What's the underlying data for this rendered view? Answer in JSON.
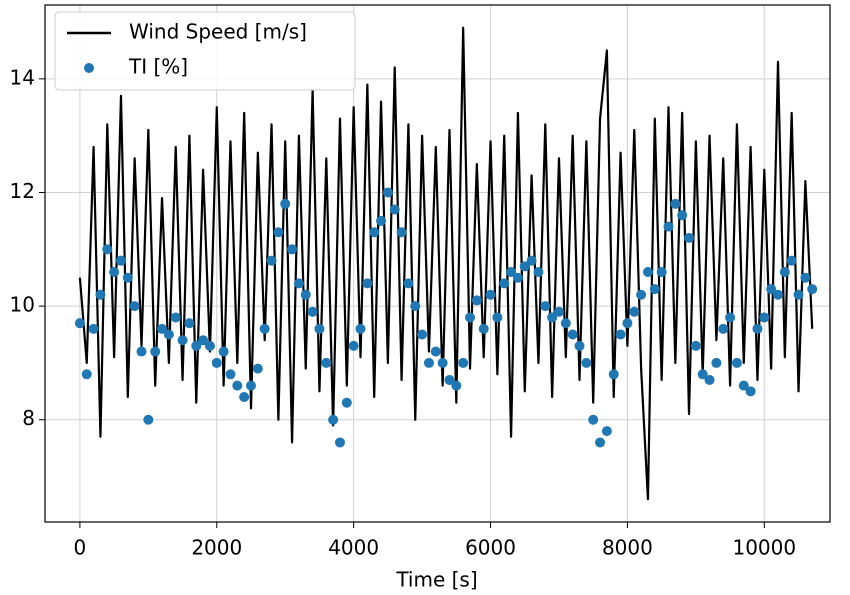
{
  "chart_data": {
    "type": "line",
    "xlabel": "Time [s]",
    "x": [
      0,
      100,
      200,
      300,
      400,
      500,
      600,
      700,
      800,
      900,
      1000,
      1100,
      1200,
      1300,
      1400,
      1500,
      1600,
      1700,
      1800,
      1900,
      2000,
      2100,
      2200,
      2300,
      2400,
      2500,
      2600,
      2700,
      2800,
      2900,
      3000,
      3100,
      3200,
      3300,
      3400,
      3500,
      3600,
      3700,
      3800,
      3900,
      4000,
      4100,
      4200,
      4300,
      4400,
      4500,
      4600,
      4700,
      4800,
      4900,
      5000,
      5100,
      5200,
      5300,
      5400,
      5500,
      5600,
      5700,
      5800,
      5900,
      6000,
      6100,
      6200,
      6300,
      6400,
      6500,
      6600,
      6700,
      6800,
      6900,
      7000,
      7100,
      7200,
      7300,
      7400,
      7500,
      7600,
      7700,
      7800,
      7900,
      8000,
      8100,
      8200,
      8300,
      8400,
      8500,
      8600,
      8700,
      8800,
      8900,
      9000,
      9100,
      9200,
      9300,
      9400,
      9500,
      9600,
      9700,
      9800,
      9900,
      10000,
      10100,
      10200,
      10300,
      10400,
      10500,
      10600,
      10700
    ],
    "series": [
      {
        "name": "Wind Speed [m/s]",
        "color": "#000000",
        "style": "line",
        "values": [
          10.5,
          9.0,
          12.8,
          7.7,
          13.2,
          9.1,
          13.7,
          8.4,
          12.6,
          9.3,
          13.1,
          8.6,
          11.9,
          9.0,
          12.8,
          8.7,
          13.0,
          8.3,
          12.4,
          9.2,
          13.5,
          8.6,
          12.9,
          9.0,
          13.4,
          8.2,
          12.7,
          9.4,
          13.2,
          8.0,
          12.9,
          7.6,
          13.0,
          8.9,
          13.8,
          8.5,
          12.6,
          7.9,
          13.3,
          8.6,
          13.5,
          9.1,
          13.9,
          8.4,
          13.6,
          9.0,
          14.2,
          8.7,
          13.2,
          8.0,
          13.0,
          9.2,
          12.8,
          8.6,
          13.1,
          8.3,
          14.9,
          8.9,
          12.5,
          9.1,
          12.9,
          8.8,
          13.0,
          7.7,
          13.4,
          8.5,
          12.3,
          9.0,
          13.2,
          8.4,
          12.6,
          9.1,
          13.0,
          8.7,
          12.9,
          8.3,
          13.3,
          14.5,
          8.4,
          12.7,
          9.3,
          13.1,
          8.9,
          6.6,
          13.3,
          8.7,
          13.5,
          9.0,
          13.4,
          8.1,
          12.9,
          8.8,
          13.0,
          9.4,
          12.6,
          8.6,
          13.2,
          9.0,
          12.8,
          8.7,
          12.4,
          8.9,
          14.3,
          9.1,
          13.4,
          8.5,
          12.2,
          9.6
        ]
      },
      {
        "name": "TI [%]",
        "color": "#1f77b4",
        "style": "dots",
        "values": [
          9.7,
          8.8,
          9.6,
          10.2,
          11.0,
          10.6,
          10.8,
          10.5,
          10.0,
          9.2,
          8.0,
          9.2,
          9.6,
          9.5,
          9.8,
          9.4,
          9.7,
          9.3,
          9.4,
          9.3,
          9.0,
          9.2,
          8.8,
          8.6,
          8.4,
          8.6,
          8.9,
          9.6,
          10.8,
          11.3,
          11.8,
          11.0,
          10.4,
          10.2,
          9.9,
          9.6,
          9.0,
          8.0,
          7.6,
          8.3,
          9.3,
          9.6,
          10.4,
          11.3,
          11.5,
          12.0,
          11.7,
          11.3,
          10.4,
          10.0,
          9.5,
          9.0,
          9.2,
          9.0,
          8.7,
          8.6,
          9.0,
          9.8,
          10.1,
          9.6,
          10.2,
          9.8,
          10.4,
          10.6,
          10.5,
          10.7,
          10.8,
          10.6,
          10.0,
          9.8,
          9.9,
          9.7,
          9.5,
          9.3,
          9.0,
          8.0,
          7.6,
          7.8,
          8.8,
          9.5,
          9.7,
          9.9,
          10.2,
          10.6,
          10.3,
          10.6,
          11.4,
          11.8,
          11.6,
          11.2,
          9.3,
          8.8,
          8.7,
          9.0,
          9.6,
          9.8,
          9.0,
          8.6,
          8.5,
          9.6,
          9.8,
          10.3,
          10.2,
          10.6,
          10.8,
          10.2,
          10.5,
          10.3
        ]
      }
    ],
    "xlim": [
      -510,
      10960
    ],
    "ylim": [
      6.2,
      15.3
    ],
    "xticks": [
      0,
      2000,
      4000,
      6000,
      8000,
      10000
    ],
    "yticks": [
      8,
      10,
      12,
      14
    ],
    "grid": true,
    "legend": "upper left"
  }
}
